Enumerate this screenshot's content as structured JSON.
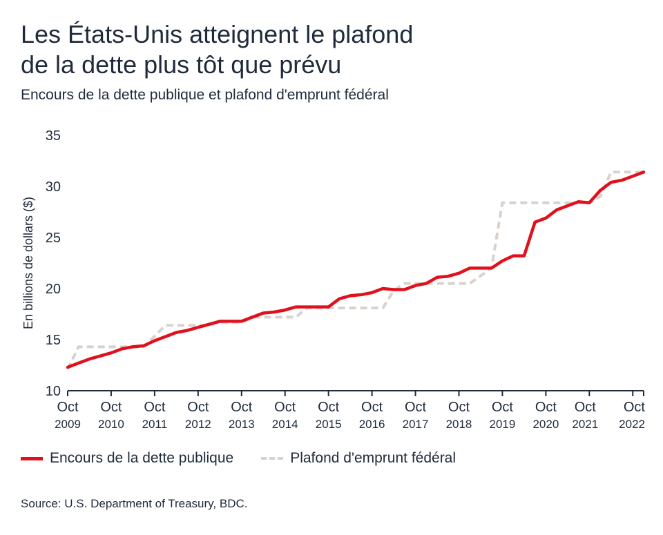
{
  "title": "Les États-Unis atteignent le plafond\nde la dette plus tôt que prévu",
  "subtitle": "Encours de la dette publique et plafond d'emprunt fédéral",
  "source": "Source: U.S. Department of Treasury, BDC.",
  "colors": {
    "debt": "#e0101c",
    "ceiling": "#d9d1cb",
    "axis": "#1f2a3a"
  },
  "chart_data": {
    "type": "line",
    "title": "Les États-Unis atteignent le plafond de la dette plus tôt que prévu",
    "subtitle": "Encours de la dette publique et plafond d'emprunt fédéral",
    "ylabel": "En billions de dollars ($)",
    "xlabel": "",
    "ylim": [
      10,
      35
    ],
    "xlim": [
      2009.75,
      2022.75
    ],
    "y_ticks": [
      10,
      15,
      20,
      25,
      30,
      35
    ],
    "x_ticks": [
      {
        "x": 2009.75,
        "top": "Oct",
        "bottom": "2009"
      },
      {
        "x": 2010.75,
        "top": "Oct",
        "bottom": "2010"
      },
      {
        "x": 2011.75,
        "top": "Oct",
        "bottom": "2011"
      },
      {
        "x": 2012.75,
        "top": "Oct",
        "bottom": "2012"
      },
      {
        "x": 2013.75,
        "top": "Oct",
        "bottom": "2013"
      },
      {
        "x": 2014.75,
        "top": "Oct",
        "bottom": "2014"
      },
      {
        "x": 2015.75,
        "top": "Oct",
        "bottom": "2015"
      },
      {
        "x": 2016.75,
        "top": "Oct",
        "bottom": "2016"
      },
      {
        "x": 2017.75,
        "top": "Oct",
        "bottom": "2017"
      },
      {
        "x": 2018.75,
        "top": "Oct",
        "bottom": "2018"
      },
      {
        "x": 2019.75,
        "top": "Oct",
        "bottom": "2019"
      },
      {
        "x": 2020.75,
        "top": "Oct",
        "bottom": "2020"
      },
      {
        "x": 2021.75,
        "top": "Oct",
        "bottom": "2021"
      },
      {
        "x": 2022.75,
        "top": "Oct",
        "bottom": "2022"
      }
    ],
    "legend_position": "bottom-left",
    "grid": false,
    "series": [
      {
        "name": "Encours de la dette publique",
        "style": "solid",
        "points": [
          [
            2009.75,
            12.3
          ],
          [
            2010.0,
            12.7
          ],
          [
            2010.25,
            13.1
          ],
          [
            2010.5,
            13.4
          ],
          [
            2010.75,
            13.7
          ],
          [
            2011.0,
            14.1
          ],
          [
            2011.25,
            14.3
          ],
          [
            2011.5,
            14.4
          ],
          [
            2011.75,
            14.9
          ],
          [
            2012.0,
            15.3
          ],
          [
            2012.25,
            15.7
          ],
          [
            2012.5,
            15.9
          ],
          [
            2012.75,
            16.2
          ],
          [
            2013.0,
            16.5
          ],
          [
            2013.25,
            16.8
          ],
          [
            2013.5,
            16.8
          ],
          [
            2013.75,
            16.8
          ],
          [
            2014.0,
            17.2
          ],
          [
            2014.25,
            17.6
          ],
          [
            2014.5,
            17.7
          ],
          [
            2014.75,
            17.9
          ],
          [
            2015.0,
            18.2
          ],
          [
            2015.25,
            18.2
          ],
          [
            2015.5,
            18.2
          ],
          [
            2015.75,
            18.2
          ],
          [
            2016.0,
            19.0
          ],
          [
            2016.25,
            19.3
          ],
          [
            2016.5,
            19.4
          ],
          [
            2016.75,
            19.6
          ],
          [
            2017.0,
            20.0
          ],
          [
            2017.25,
            19.9
          ],
          [
            2017.5,
            19.9
          ],
          [
            2017.75,
            20.3
          ],
          [
            2018.0,
            20.5
          ],
          [
            2018.25,
            21.1
          ],
          [
            2018.5,
            21.2
          ],
          [
            2018.75,
            21.5
          ],
          [
            2019.0,
            22.0
          ],
          [
            2019.25,
            22.0
          ],
          [
            2019.5,
            22.0
          ],
          [
            2019.75,
            22.7
          ],
          [
            2020.0,
            23.2
          ],
          [
            2020.25,
            23.2
          ],
          [
            2020.5,
            26.5
          ],
          [
            2020.75,
            26.9
          ],
          [
            2021.0,
            27.7
          ],
          [
            2021.25,
            28.1
          ],
          [
            2021.5,
            28.5
          ],
          [
            2021.75,
            28.4
          ],
          [
            2022.0,
            29.6
          ],
          [
            2022.25,
            30.4
          ],
          [
            2022.5,
            30.6
          ],
          [
            2022.75,
            31.0
          ],
          [
            2023.0,
            31.4
          ]
        ]
      },
      {
        "name": "Plafond d'emprunt fédéral",
        "style": "dashed",
        "points": [
          [
            2009.75,
            12.1
          ],
          [
            2010.0,
            14.3
          ],
          [
            2011.5,
            14.3
          ],
          [
            2012.0,
            16.4
          ],
          [
            2013.0,
            16.4
          ],
          [
            2013.25,
            16.7
          ],
          [
            2013.75,
            16.7
          ],
          [
            2014.0,
            17.2
          ],
          [
            2015.0,
            17.2
          ],
          [
            2015.25,
            18.1
          ],
          [
            2017.0,
            18.1
          ],
          [
            2017.25,
            19.8
          ],
          [
            2017.5,
            20.5
          ],
          [
            2019.0,
            20.5
          ],
          [
            2019.5,
            22.0
          ],
          [
            2019.75,
            28.4
          ],
          [
            2021.75,
            28.4
          ],
          [
            2022.0,
            29.0
          ],
          [
            2022.25,
            31.4
          ],
          [
            2023.0,
            31.4
          ]
        ]
      }
    ]
  },
  "legend": {
    "debt_label": "Encours de la dette publique",
    "ceiling_label": "Plafond d'emprunt fédéral"
  }
}
